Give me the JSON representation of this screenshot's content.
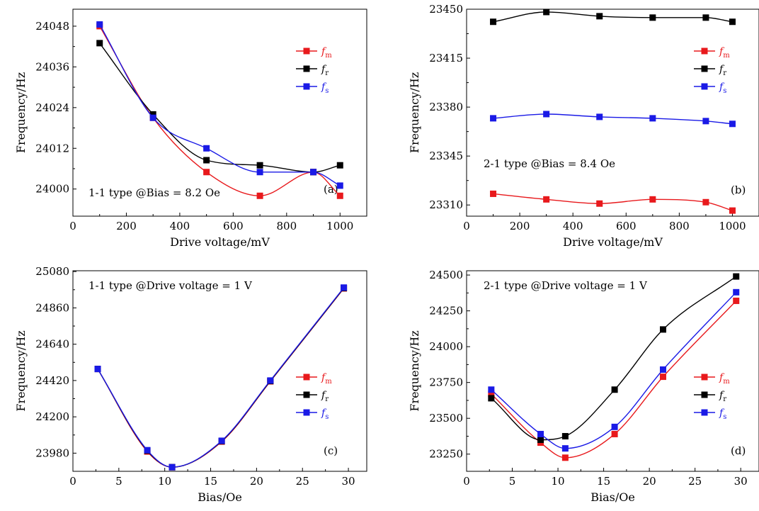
{
  "chart_data": [
    {
      "type": "line",
      "xlabel": "Drive voltage/mV",
      "ylabel": "Frequency/Hz",
      "xlim": [
        0,
        1100
      ],
      "ylim": [
        23992,
        24053
      ],
      "xticks": [
        "0",
        "200",
        "400",
        "600",
        "800",
        "1000"
      ],
      "yticks": [
        "24000",
        "24012",
        "24024",
        "24036",
        "24048"
      ],
      "annotation": "1-1 type @Bias = 8.2 Oe",
      "panel_label": "(a)",
      "legend": "right",
      "x": [
        100,
        300,
        500,
        700,
        900,
        1000
      ],
      "series": [
        {
          "name": "fm",
          "legend_main": "f",
          "legend_sub": "m",
          "color": "#e8191c",
          "values": [
            24048,
            24021,
            24005,
            23998,
            24005,
            23998
          ]
        },
        {
          "name": "fr",
          "legend_main": "f",
          "legend_sub": "r",
          "color": "#000000",
          "values": [
            24043,
            24022,
            24008.5,
            24007,
            24005,
            24007
          ]
        },
        {
          "name": "fs",
          "legend_main": "f",
          "legend_sub": "s",
          "color": "#1a1ae6",
          "values": [
            24048.5,
            24021,
            24012,
            24005,
            24005,
            24001
          ]
        }
      ]
    },
    {
      "type": "line",
      "xlabel": "Drive voltage/mV",
      "ylabel": "Frequency/Hz",
      "xlim": [
        0,
        1100
      ],
      "ylim": [
        23302,
        23450
      ],
      "xticks": [
        "0",
        "200",
        "400",
        "600",
        "800",
        "1000"
      ],
      "yticks": [
        "23310",
        "23345",
        "23380",
        "23415",
        "23450"
      ],
      "annotation": "2-1 type @Bias = 8.4 Oe",
      "panel_label": "(b)",
      "legend": "right",
      "x": [
        100,
        300,
        500,
        700,
        900,
        1000
      ],
      "series": [
        {
          "name": "fm",
          "legend_main": "f",
          "legend_sub": "m",
          "color": "#e8191c",
          "values": [
            23318,
            23314,
            23311,
            23314,
            23312,
            23306
          ]
        },
        {
          "name": "fr",
          "legend_main": "f",
          "legend_sub": "r",
          "color": "#000000",
          "values": [
            23441,
            23448,
            23445,
            23444,
            23444,
            23441
          ]
        },
        {
          "name": "fs",
          "legend_main": "f",
          "legend_sub": "s",
          "color": "#1a1ae6",
          "values": [
            23372,
            23375,
            23373,
            23372,
            23370,
            23368
          ]
        }
      ]
    },
    {
      "type": "line",
      "xlabel": "Bias/Oe",
      "ylabel": "Frequency/Hz",
      "xlim": [
        0,
        32
      ],
      "ylim": [
        23870,
        25085
      ],
      "xticks": [
        "0",
        "5",
        "10",
        "15",
        "20",
        "25",
        "30"
      ],
      "yticks": [
        "23980",
        "24200",
        "24420",
        "24640",
        "24860",
        "25080"
      ],
      "annotation": "1-1 type @Drive voltage = 1 V",
      "panel_label": "(c)",
      "legend": "right",
      "x": [
        2.7,
        8.1,
        10.8,
        16.2,
        21.5,
        29.5
      ],
      "series": [
        {
          "name": "fm",
          "legend_main": "f",
          "legend_sub": "m",
          "color": "#e8191c",
          "values": [
            24490,
            23990,
            23895,
            24050,
            24415,
            24978
          ]
        },
        {
          "name": "fr",
          "legend_main": "f",
          "legend_sub": "r",
          "color": "#000000",
          "values": [
            24490,
            23995,
            23895,
            24053,
            24417,
            24980
          ]
        },
        {
          "name": "fs",
          "legend_main": "f",
          "legend_sub": "s",
          "color": "#1a1ae6",
          "values": [
            24490,
            23998,
            23895,
            24055,
            24420,
            24983
          ]
        }
      ]
    },
    {
      "type": "line",
      "xlabel": "Bias/Oe",
      "ylabel": "Frequency/Hz",
      "xlim": [
        0,
        32
      ],
      "ylim": [
        23130,
        24530
      ],
      "xticks": [
        "0",
        "5",
        "10",
        "15",
        "20",
        "25",
        "30"
      ],
      "yticks": [
        "23250",
        "23500",
        "23750",
        "24000",
        "24250",
        "24500"
      ],
      "annotation": "2-1 type @Drive voltage = 1 V",
      "panel_label": "(d)",
      "legend": "right",
      "x": [
        2.7,
        8.1,
        10.8,
        16.2,
        21.5,
        29.5
      ],
      "series": [
        {
          "name": "fm",
          "legend_main": "f",
          "legend_sub": "m",
          "color": "#e8191c",
          "values": [
            23670,
            23330,
            23225,
            23390,
            23790,
            24320
          ]
        },
        {
          "name": "fr",
          "legend_main": "f",
          "legend_sub": "r",
          "color": "#000000",
          "values": [
            23640,
            23350,
            23375,
            23700,
            24120,
            24490
          ]
        },
        {
          "name": "fs",
          "legend_main": "f",
          "legend_sub": "s",
          "color": "#1a1ae6",
          "values": [
            23700,
            23390,
            23290,
            23440,
            23840,
            24380
          ]
        }
      ]
    }
  ]
}
